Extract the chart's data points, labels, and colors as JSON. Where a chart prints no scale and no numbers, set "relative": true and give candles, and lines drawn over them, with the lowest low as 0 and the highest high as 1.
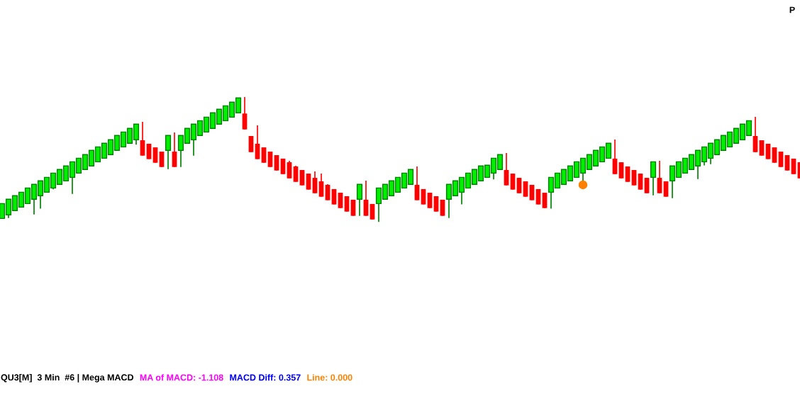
{
  "chart_data": {
    "type": "candlestick",
    "relative": true,
    "marker": "circle",
    "categories": [
      null,
      null,
      null,
      null,
      null,
      null,
      null,
      null,
      null,
      null,
      null,
      null,
      null,
      null,
      null,
      null,
      null,
      null,
      null,
      null,
      null,
      null,
      null,
      null,
      null,
      null,
      null,
      null,
      null,
      null,
      null,
      null,
      null,
      null,
      null,
      null,
      null,
      null,
      null,
      null,
      null,
      null,
      null,
      null,
      null,
      null,
      null,
      null,
      null,
      null,
      null,
      null,
      null,
      null,
      null,
      null,
      null,
      null,
      null,
      null,
      null,
      null,
      null,
      null,
      null,
      null,
      null,
      null,
      null,
      null,
      null,
      null,
      null,
      null,
      null,
      null,
      null,
      null,
      null,
      null,
      null,
      null,
      null,
      null,
      null,
      null,
      null,
      null,
      null,
      null,
      null,
      null,
      null,
      null,
      null,
      null,
      null,
      null,
      null,
      null,
      null,
      null,
      null,
      null,
      null,
      null,
      null,
      null,
      null,
      null,
      null,
      null,
      null,
      null,
      null,
      null,
      null,
      null,
      null,
      null,
      null,
      null,
      null,
      null,
      null,
      null
    ],
    "ohlc": [
      [
        0.028,
        0.147,
        0.028,
        0.147
      ],
      [
        0.057,
        0.182,
        0.032,
        0.182
      ],
      [
        0.091,
        0.21,
        0.091,
        0.21
      ],
      [
        0.119,
        0.238,
        0.119,
        0.238
      ],
      [
        0.147,
        0.272,
        0.147,
        0.272
      ],
      [
        0.182,
        0.301,
        0.06,
        0.301
      ],
      [
        0.21,
        0.329,
        0.106,
        0.329
      ],
      [
        0.238,
        0.357,
        0.238,
        0.357
      ],
      [
        0.272,
        0.391,
        0.261,
        0.391
      ],
      [
        0.301,
        0.42,
        0.301,
        0.42
      ],
      [
        0.329,
        0.448,
        0.329,
        0.448
      ],
      [
        0.357,
        0.482,
        0.225,
        0.482
      ],
      [
        0.391,
        0.51,
        0.391,
        0.51
      ],
      [
        0.42,
        0.539,
        0.42,
        0.539
      ],
      [
        0.448,
        0.573,
        0.448,
        0.573
      ],
      [
        0.482,
        0.601,
        0.482,
        0.601
      ],
      [
        0.51,
        0.63,
        0.51,
        0.63
      ],
      [
        0.539,
        0.658,
        0.539,
        0.658
      ],
      [
        0.573,
        0.692,
        0.573,
        0.692
      ],
      [
        0.601,
        0.72,
        0.601,
        0.72
      ],
      [
        0.63,
        0.749,
        0.63,
        0.749
      ],
      [
        0.658,
        0.783,
        0.618,
        0.783
      ],
      [
        0.654,
        0.801,
        0.531,
        0.531
      ],
      [
        0.626,
        0.626,
        0.503,
        0.503
      ],
      [
        0.597,
        0.597,
        0.474,
        0.474
      ],
      [
        0.563,
        0.563,
        0.44,
        0.44
      ],
      [
        0.573,
        0.692,
        0.423,
        0.692
      ],
      [
        0.563,
        0.716,
        0.44,
        0.44
      ],
      [
        0.573,
        0.692,
        0.44,
        0.692
      ],
      [
        0.63,
        0.749,
        0.63,
        0.749
      ],
      [
        0.658,
        0.783,
        0.531,
        0.783
      ],
      [
        0.692,
        0.811,
        0.692,
        0.811
      ],
      [
        0.72,
        0.839,
        0.72,
        0.839
      ],
      [
        0.749,
        0.874,
        0.749,
        0.874
      ],
      [
        0.783,
        0.902,
        0.783,
        0.902
      ],
      [
        0.811,
        0.93,
        0.811,
        0.93
      ],
      [
        0.839,
        0.959,
        0.839,
        0.959
      ],
      [
        0.874,
        0.993,
        0.874,
        0.993
      ],
      [
        0.868,
        1,
        0.741,
        0.741
      ],
      [
        0.688,
        0.688,
        0.559,
        0.559
      ],
      [
        0.626,
        0.773,
        0.503,
        0.503
      ],
      [
        0.597,
        0.597,
        0.474,
        0.474
      ],
      [
        0.563,
        0.563,
        0.44,
        0.44
      ],
      [
        0.535,
        0.535,
        0.412,
        0.412
      ],
      [
        0.507,
        0.507,
        0.383,
        0.383
      ],
      [
        0.478,
        0.489,
        0.349,
        0.349
      ],
      [
        0.444,
        0.45,
        0.321,
        0.321
      ],
      [
        0.416,
        0.416,
        0.293,
        0.293
      ],
      [
        0.387,
        0.387,
        0.259,
        0.259
      ],
      [
        0.353,
        0.404,
        0.23,
        0.23
      ],
      [
        0.325,
        0.387,
        0.202,
        0.202
      ],
      [
        0.297,
        0.302,
        0.174,
        0.174
      ],
      [
        0.263,
        0.263,
        0.14,
        0.14
      ],
      [
        0.234,
        0.234,
        0.111,
        0.111
      ],
      [
        0.206,
        0.206,
        0.083,
        0.083
      ],
      [
        0.178,
        0.178,
        0.049,
        0.049
      ],
      [
        0.182,
        0.301,
        0.049,
        0.301
      ],
      [
        0.178,
        0.331,
        0.049,
        0.049
      ],
      [
        0.144,
        0.144,
        0.02,
        0.02
      ],
      [
        0.147,
        0.272,
        0,
        0.272
      ],
      [
        0.182,
        0.301,
        0.182,
        0.301
      ],
      [
        0.21,
        0.329,
        0.21,
        0.329
      ],
      [
        0.238,
        0.357,
        0.238,
        0.357
      ],
      [
        0.272,
        0.391,
        0.272,
        0.391
      ],
      [
        0.301,
        0.42,
        0.301,
        0.42
      ],
      [
        0.297,
        0.444,
        0.174,
        0.174
      ],
      [
        0.263,
        0.263,
        0.14,
        0.14
      ],
      [
        0.234,
        0.234,
        0.111,
        0.111
      ],
      [
        0.206,
        0.206,
        0.083,
        0.083
      ],
      [
        0.178,
        0.178,
        0.049,
        0.049
      ],
      [
        0.182,
        0.301,
        0.032,
        0.301
      ],
      [
        0.21,
        0.329,
        0.21,
        0.329
      ],
      [
        0.238,
        0.357,
        0.14,
        0.357
      ],
      [
        0.272,
        0.391,
        0.272,
        0.391
      ],
      [
        0.301,
        0.42,
        0.301,
        0.42
      ],
      [
        0.329,
        0.448,
        0.329,
        0.448
      ],
      [
        0.357,
        0.454,
        0.357,
        0.454
      ],
      [
        0.391,
        0.51,
        0.34,
        0.51
      ],
      [
        0.42,
        0.539,
        0.42,
        0.539
      ],
      [
        0.416,
        0.552,
        0.293,
        0.293
      ],
      [
        0.387,
        0.387,
        0.259,
        0.259
      ],
      [
        0.353,
        0.353,
        0.23,
        0.23
      ],
      [
        0.325,
        0.325,
        0.202,
        0.202
      ],
      [
        0.297,
        0.297,
        0.174,
        0.174
      ],
      [
        0.263,
        0.263,
        0.14,
        0.14
      ],
      [
        0.234,
        0.234,
        0.111,
        0.111
      ],
      [
        0.238,
        0.357,
        0.106,
        0.357
      ],
      [
        0.272,
        0.391,
        0.272,
        0.391
      ],
      [
        0.301,
        0.42,
        0.301,
        0.42
      ],
      [
        0.329,
        0.448,
        0.329,
        0.448
      ],
      [
        0.357,
        0.482,
        0.357,
        0.482
      ],
      [
        0.391,
        0.51,
        0.331,
        0.51
      ],
      [
        0.42,
        0.539,
        0.42,
        0.539
      ],
      [
        0.448,
        0.573,
        0.448,
        0.573
      ],
      [
        0.482,
        0.601,
        0.482,
        0.601
      ],
      [
        0.51,
        0.63,
        0.51,
        0.63
      ],
      [
        0.507,
        0.66,
        0.383,
        0.383
      ],
      [
        0.478,
        0.478,
        0.349,
        0.349
      ],
      [
        0.444,
        0.444,
        0.321,
        0.321
      ],
      [
        0.416,
        0.416,
        0.293,
        0.293
      ],
      [
        0.387,
        0.387,
        0.259,
        0.259
      ],
      [
        0.353,
        0.353,
        0.23,
        0.23
      ],
      [
        0.357,
        0.482,
        0.213,
        0.482
      ],
      [
        0.353,
        0.489,
        0.23,
        0.23
      ],
      [
        0.325,
        0.325,
        0.202,
        0.202
      ],
      [
        0.329,
        0.448,
        0.191,
        0.448
      ],
      [
        0.357,
        0.482,
        0.357,
        0.482
      ],
      [
        0.391,
        0.51,
        0.391,
        0.51
      ],
      [
        0.42,
        0.539,
        0.42,
        0.539
      ],
      [
        0.448,
        0.573,
        0.344,
        0.573
      ],
      [
        0.482,
        0.601,
        0.452,
        0.601
      ],
      [
        0.51,
        0.63,
        0.463,
        0.63
      ],
      [
        0.539,
        0.658,
        0.539,
        0.658
      ],
      [
        0.573,
        0.692,
        0.573,
        0.692
      ],
      [
        0.601,
        0.72,
        0.601,
        0.72
      ],
      [
        0.63,
        0.749,
        0.63,
        0.749
      ],
      [
        0.658,
        0.783,
        0.658,
        0.783
      ],
      [
        0.692,
        0.811,
        0.692,
        0.811
      ],
      [
        0.688,
        0.841,
        0.559,
        0.559
      ],
      [
        0.654,
        0.654,
        0.531,
        0.531
      ],
      [
        0.626,
        0.626,
        0.503,
        0.503
      ],
      [
        0.597,
        0.597,
        0.474,
        0.474
      ],
      [
        0.563,
        0.563,
        0.44,
        0.44
      ],
      [
        0.535,
        0.535,
        0.412,
        0.412
      ],
      [
        0.507,
        0.507,
        0.383,
        0.383
      ],
      [
        0.478,
        0.478,
        0.349,
        0.349
      ]
    ],
    "colors": [
      "#00ee00",
      "#00ee00",
      "#00ee00",
      "#00ee00",
      "#00ee00",
      "#00ee00",
      "#00ee00",
      "#00ee00",
      "#00ee00",
      "#00ee00",
      "#00ee00",
      "#00ee00",
      "#00ee00",
      "#00ee00",
      "#00ee00",
      "#00ee00",
      "#00ee00",
      "#00ee00",
      "#00ee00",
      "#00ee00",
      "#00ee00",
      "#00ee00",
      "#ff0000",
      "#ff0000",
      "#ff0000",
      "#ff0000",
      "#00ee00",
      "#ff0000",
      "#00ee00",
      "#00ee00",
      "#00ee00",
      "#00ee00",
      "#00ee00",
      "#00ee00",
      "#00ee00",
      "#00ee00",
      "#00ee00",
      "#00ee00",
      "#ff0000",
      "#ff0000",
      "#ff0000",
      "#ff0000",
      "#ff0000",
      "#ff0000",
      "#ff0000",
      "#ff0000",
      "#ff0000",
      "#ff0000",
      "#ff0000",
      "#ff0000",
      "#ff0000",
      "#ff0000",
      "#ff0000",
      "#ff0000",
      "#ff0000",
      "#ff0000",
      "#00ee00",
      "#ff0000",
      "#ff0000",
      "#00ee00",
      "#00ee00",
      "#00ee00",
      "#00ee00",
      "#00ee00",
      "#00ee00",
      "#ff0000",
      "#ff0000",
      "#ff0000",
      "#ff0000",
      "#ff0000",
      "#00ee00",
      "#00ee00",
      "#00ee00",
      "#00ee00",
      "#00ee00",
      "#00ee00",
      "#00ee00",
      "#00ee00",
      "#00ee00",
      "#ff0000",
      "#ff0000",
      "#ff0000",
      "#ff0000",
      "#ff0000",
      "#ff0000",
      "#ff0000",
      "#00ee00",
      "#00ee00",
      "#00ee00",
      "#00ee00",
      "#00ee00",
      "#00ee00",
      "#00ee00",
      "#00ee00",
      "#00ee00",
      "#00ee00",
      "#ff0000",
      "#ff0000",
      "#ff0000",
      "#ff0000",
      "#ff0000",
      "#ff0000",
      "#00ee00",
      "#ff0000",
      "#ff0000",
      "#00ee00",
      "#00ee00",
      "#00ee00",
      "#00ee00",
      "#00ee00",
      "#00ee00",
      "#00ee00",
      "#00ee00",
      "#00ee00",
      "#00ee00",
      "#00ee00",
      "#00ee00",
      "#00ee00",
      "#ff0000",
      "#ff0000",
      "#ff0000",
      "#ff0000",
      "#ff0000",
      "#ff0000",
      "#ff0000",
      "#ff0000"
    ],
    "series": [
      {
        "type": "scatter",
        "color": "#ff8000",
        "values": [
          null,
          null,
          null,
          null,
          null,
          null,
          null,
          null,
          null,
          null,
          null,
          null,
          null,
          null,
          null,
          null,
          null,
          null,
          null,
          null,
          null,
          null,
          null,
          null,
          null,
          null,
          null,
          null,
          null,
          null,
          null,
          null,
          null,
          null,
          null,
          null,
          null,
          null,
          null,
          null,
          null,
          null,
          null,
          null,
          null,
          null,
          null,
          null,
          null,
          null,
          null,
          null,
          null,
          null,
          null,
          null,
          null,
          null,
          null,
          null,
          null,
          null,
          null,
          null,
          null,
          null,
          null,
          null,
          null,
          null,
          null,
          null,
          null,
          null,
          null,
          null,
          null,
          null,
          null,
          null,
          null,
          null,
          null,
          null,
          null,
          null,
          null,
          null,
          null,
          null,
          null,
          0.297,
          null,
          null,
          null,
          null,
          null,
          null,
          null,
          null,
          null,
          null,
          null,
          null,
          null,
          null,
          null,
          null,
          null,
          null,
          null,
          null,
          null,
          null,
          null,
          null,
          null,
          null,
          null,
          null,
          null,
          null,
          null,
          null,
          null,
          null
        ]
      }
    ],
    "annotations": [
      "P",
      "QU3[M]  3 Min  #6 | Mega MACD",
      "MA of MACD: -1.108",
      "MACD Diff: 0.357",
      "Line: 0.000"
    ]
  }
}
